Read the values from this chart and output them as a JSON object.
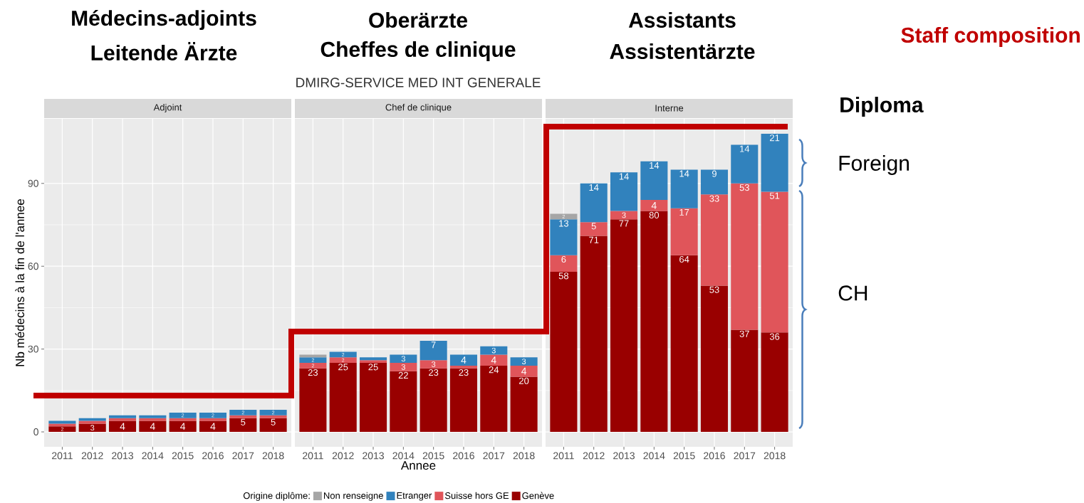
{
  "chart_data": [
    {
      "type": "bar",
      "stacked": true,
      "subtitle": "Adjoint",
      "ylabel": "Nb médecins à la fin de l'annee",
      "categories": [
        "2011",
        "2012",
        "2013",
        "2014",
        "2015",
        "2016",
        "2017",
        "2018"
      ],
      "series": [
        {
          "color": "#990000",
          "values": [
            2,
            3,
            4,
            4,
            4,
            4,
            5,
            5
          ],
          "value_labels": [
            "2",
            "3",
            "4",
            "4",
            "4",
            "4",
            "5",
            "5"
          ]
        },
        {
          "color": "#e0555a",
          "values": [
            1,
            1,
            1,
            1,
            1,
            1,
            1,
            1
          ]
        },
        {
          "color": "#3182bd",
          "values": [
            1,
            1,
            1,
            1,
            2,
            2,
            2,
            2
          ],
          "value_labels": [
            null,
            null,
            null,
            null,
            "2",
            "2",
            "2",
            "2"
          ]
        }
      ],
      "ylim": [
        -5.4,
        113.4
      ],
      "yticks": [
        0,
        30,
        60,
        90
      ],
      "grid": true
    },
    {
      "type": "bar",
      "stacked": true,
      "subtitle": "Chef de clinique",
      "xlabel": "Annee",
      "legend_title": "Origine diplôme:",
      "legend": "bottom",
      "categories": [
        "2011",
        "2012",
        "2013",
        "2014",
        "2015",
        "2016",
        "2017",
        "2018"
      ],
      "series": [
        {
          "name": "Genève",
          "color": "#990000",
          "values": [
            23,
            25,
            25,
            22,
            23,
            23,
            24,
            20
          ],
          "value_labels": [
            "23",
            "25",
            "25",
            "22",
            "23",
            "23",
            "24",
            "20"
          ]
        },
        {
          "name": "Suisse hors GE",
          "color": "#e0555a",
          "values": [
            2,
            2,
            1,
            3,
            3,
            1,
            4,
            4
          ],
          "value_labels": [
            "2",
            "2",
            null,
            "3",
            "3",
            null,
            "4",
            "4"
          ]
        },
        {
          "name": "Etranger",
          "color": "#3182bd",
          "values": [
            2,
            2,
            1,
            3,
            7,
            4,
            3,
            3
          ],
          "value_labels": [
            "2",
            "2",
            null,
            "3",
            "7",
            "4",
            "3",
            "3"
          ]
        },
        {
          "name": "Non renseigne",
          "color": "#a6a6a6",
          "values": [
            1,
            null,
            null,
            null,
            null,
            null,
            null,
            null
          ]
        }
      ],
      "ylim": [
        -5.4,
        113.4
      ],
      "yticks": [
        0,
        30,
        60,
        90
      ],
      "grid": true,
      "tick_labels": "x"
    },
    {
      "type": "bar",
      "stacked": true,
      "subtitle": "Interne",
      "categories": [
        "2011",
        "2012",
        "2013",
        "2014",
        "2015",
        "2016",
        "2017",
        "2018"
      ],
      "series": [
        {
          "color": "#990000",
          "values": [
            58,
            71,
            77,
            80,
            64,
            53,
            37,
            36
          ],
          "value_labels": [
            "58",
            "71",
            "77",
            "80",
            "64",
            "53",
            "37",
            "36"
          ]
        },
        {
          "color": "#e0555a",
          "values": [
            6,
            5,
            3,
            4,
            17,
            33,
            53,
            51
          ],
          "value_labels": [
            "6",
            "5",
            "3",
            "4",
            "17",
            "33",
            "53",
            "51"
          ]
        },
        {
          "color": "#3182bd",
          "values": [
            13,
            14,
            14,
            14,
            14,
            9,
            14,
            21
          ],
          "value_labels": [
            "13",
            "14",
            "14",
            "14",
            "14",
            "9",
            "14",
            "21"
          ]
        },
        {
          "color": "#a6a6a6",
          "values": [
            2,
            null,
            null,
            null,
            null,
            null,
            null,
            null
          ],
          "value_labels": [
            "2",
            null,
            null,
            null,
            null,
            null,
            null,
            null
          ]
        }
      ],
      "ylim": [
        -5.4,
        113.4
      ],
      "yticks": [
        0,
        30,
        60,
        90
      ],
      "grid": true,
      "tick_labels": "x"
    },
    {
      "type": "other",
      "annotations": [
        "Médecins-adjoints",
        "Leitende Ärzte",
        "Oberärzte",
        "Cheffes de clinique",
        "Assistants",
        "Assistentärzte",
        "Staff composition",
        "Diploma",
        "Foreign",
        "CH",
        "DMIRG-SERVICE MED INT GENERALE"
      ]
    }
  ]
}
